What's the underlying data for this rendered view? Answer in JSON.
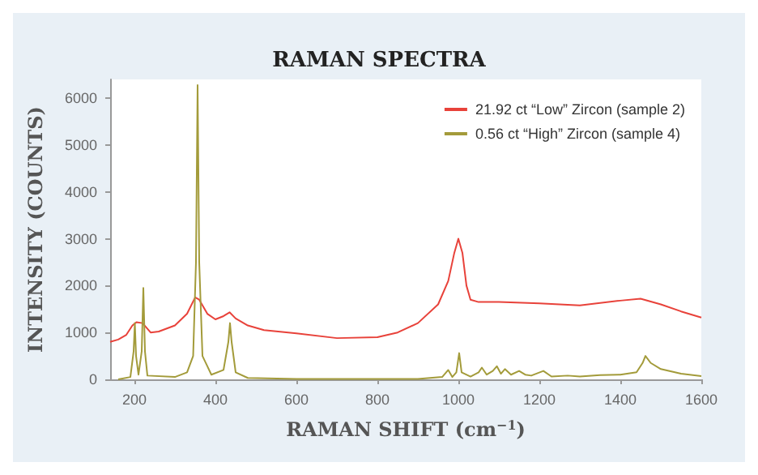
{
  "chart_data": {
    "type": "line",
    "title": "RAMAN SPECTRA",
    "xlabel": "RAMAN SHIFT (cm$^{−1}$)",
    "ylabel": "INTENSITY (COUNTS)",
    "xlim": [
      140,
      1600
    ],
    "xticks": [
      200,
      400,
      600,
      800,
      1000,
      1200,
      1400,
      1600
    ],
    "ylim": [
      0,
      6400
    ],
    "yticks": [
      0,
      1000,
      2000,
      3000,
      4000,
      5000,
      6000
    ],
    "grid": false,
    "legend": "top right",
    "marker": "none",
    "line_style": "solid",
    "series": [
      {
        "name": "21.92 ct “Low” Zircon (sample 2)",
        "color": "#e8423a",
        "x": [
          140,
          160,
          180,
          195,
          205,
          220,
          230,
          240,
          260,
          300,
          330,
          350,
          360,
          380,
          400,
          420,
          435,
          450,
          480,
          520,
          600,
          700,
          800,
          850,
          900,
          950,
          975,
          990,
          1000,
          1010,
          1020,
          1030,
          1050,
          1100,
          1200,
          1300,
          1400,
          1450,
          1500,
          1550,
          1600
        ],
        "values": [
          800,
          850,
          950,
          1150,
          1220,
          1200,
          1100,
          1000,
          1020,
          1150,
          1400,
          1750,
          1700,
          1400,
          1280,
          1350,
          1430,
          1300,
          1150,
          1050,
          980,
          880,
          900,
          1000,
          1200,
          1600,
          2100,
          2700,
          3000,
          2700,
          2000,
          1700,
          1650,
          1650,
          1620,
          1580,
          1680,
          1720,
          1600,
          1450,
          1320
        ]
      },
      {
        "name": "0.56 ct “High” Zircon (sample 4)",
        "color": "#a39b3a",
        "x": [
          160,
          190,
          198,
          201,
          204,
          210,
          218,
          222,
          226,
          232,
          300,
          330,
          345,
          352,
          356,
          360,
          368,
          390,
          420,
          432,
          436,
          440,
          450,
          480,
          600,
          900,
          960,
          975,
          985,
          995,
          1002,
          1008,
          1030,
          1050,
          1058,
          1070,
          1085,
          1095,
          1105,
          1115,
          1130,
          1150,
          1165,
          1180,
          1210,
          1230,
          1270,
          1300,
          1350,
          1400,
          1440,
          1455,
          1462,
          1475,
          1500,
          1550,
          1600
        ],
        "values": [
          0,
          50,
          600,
          1200,
          500,
          100,
          600,
          1950,
          600,
          80,
          50,
          150,
          500,
          2500,
          6280,
          2500,
          500,
          100,
          200,
          800,
          1200,
          800,
          150,
          30,
          10,
          10,
          50,
          200,
          50,
          150,
          560,
          150,
          60,
          150,
          250,
          100,
          180,
          280,
          120,
          220,
          100,
          180,
          100,
          80,
          180,
          60,
          80,
          60,
          90,
          100,
          150,
          350,
          500,
          350,
          220,
          120,
          70
        ]
      }
    ]
  }
}
